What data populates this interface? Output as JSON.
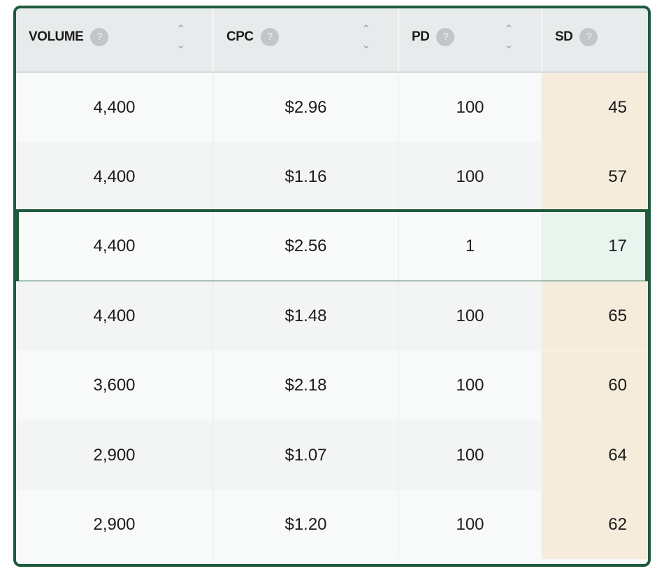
{
  "columns": [
    {
      "label": "VOLUME",
      "sortable": true
    },
    {
      "label": "CPC",
      "sortable": true
    },
    {
      "label": "PD",
      "sortable": true
    },
    {
      "label": "SD",
      "sortable": false
    }
  ],
  "help_icon": "?",
  "rows": [
    {
      "volume": "4,400",
      "cpc": "$2.96",
      "pd": "100",
      "sd": "45"
    },
    {
      "volume": "4,400",
      "cpc": "$1.16",
      "pd": "100",
      "sd": "57"
    },
    {
      "volume": "4,400",
      "cpc": "$2.56",
      "pd": "1",
      "sd": "17",
      "selected": true
    },
    {
      "volume": "4,400",
      "cpc": "$1.48",
      "pd": "100",
      "sd": "65"
    },
    {
      "volume": "3,600",
      "cpc": "$2.18",
      "pd": "100",
      "sd": "60"
    },
    {
      "volume": "2,900",
      "cpc": "$1.07",
      "pd": "100",
      "sd": "64"
    },
    {
      "volume": "2,900",
      "cpc": "$1.20",
      "pd": "100",
      "sd": "62"
    }
  ],
  "colors": {
    "border": "#1f5a3c",
    "sd_bg": "#f5ecdc",
    "sd_selected_bg": "#e8f5ee",
    "header_bg": "#e8ebec"
  }
}
